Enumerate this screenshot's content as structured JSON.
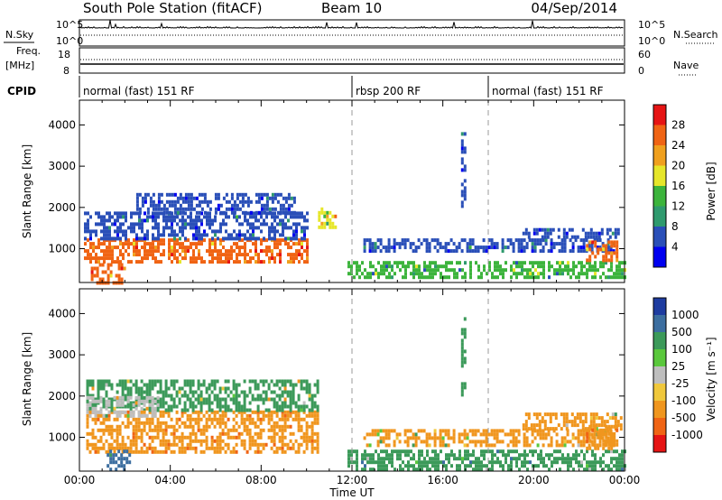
{
  "header": {
    "station": "South Pole Station (fitACF)",
    "beam": "Beam 10",
    "date": "04/Sep/2014"
  },
  "top_panels": {
    "nsky_label": "N.Sky",
    "nsky_ticks": [
      "10^5",
      "10^0"
    ],
    "nsearch_label": "N.Search",
    "freq_label_line1": "Freq.",
    "freq_label_line2": "[MHz]",
    "freq_ticks": [
      "18",
      "8"
    ],
    "nave_label": "Nave",
    "nave_ticks": [
      "60",
      "0"
    ],
    "cpid_label": "CPID",
    "cpid_segments": [
      {
        "label": "normal (fast) 151 RF",
        "start_hr": 0,
        "end_hr": 12
      },
      {
        "label": "rbsp 200 RF",
        "start_hr": 12,
        "end_hr": 18
      },
      {
        "label": "normal (fast) 151 RF",
        "start_hr": 18,
        "end_hr": 24
      }
    ]
  },
  "chart_data": [
    {
      "type": "heatmap",
      "name": "power",
      "ylabel": "Slant Range [km]",
      "colorbar_label": "Power [dB]",
      "colorbar_ticks": [
        "28",
        "24",
        "20",
        "16",
        "12",
        "8",
        "4"
      ],
      "colorbar_range": [
        0,
        32
      ],
      "colors": [
        "#0000f0",
        "#2a4fb8",
        "#2f9a6e",
        "#3cb43c",
        "#e6e62a",
        "#f0a01e",
        "#f06414",
        "#e61414"
      ],
      "x_range": [
        0,
        24
      ],
      "y_range": [
        180,
        4600
      ],
      "y_ticks": [
        1000,
        2000,
        3000,
        4000
      ],
      "x_ticks": [
        "00:00",
        "04:00",
        "08:00",
        "12:00",
        "16:00",
        "20:00",
        "00:00"
      ],
      "regions": [
        {
          "t0": 0.2,
          "t1": 10.0,
          "r0": 650,
          "r1": 1250,
          "value": 26
        },
        {
          "t0": 0.2,
          "t1": 10.0,
          "r0": 1250,
          "r1": 1900,
          "value": 6
        },
        {
          "t0": 2.5,
          "t1": 9.5,
          "r0": 1900,
          "r1": 2350,
          "value": 5
        },
        {
          "t0": 0.5,
          "t1": 2.0,
          "r0": 200,
          "r1": 650,
          "value": 25
        },
        {
          "t0": 10.5,
          "t1": 11.3,
          "r0": 1500,
          "r1": 2000,
          "value": 18
        },
        {
          "t0": 11.8,
          "t1": 24.0,
          "r0": 300,
          "r1": 700,
          "value": 14
        },
        {
          "t0": 12.5,
          "t1": 23.5,
          "r0": 900,
          "r1": 1250,
          "value": 6
        },
        {
          "t0": 19.5,
          "t1": 23.9,
          "r0": 1250,
          "r1": 1500,
          "value": 6
        },
        {
          "t0": 22.3,
          "t1": 23.7,
          "r0": 700,
          "r1": 1200,
          "value": 24
        },
        {
          "t0": 16.8,
          "t1": 17.0,
          "r0": 2000,
          "r1": 4000,
          "value": 7
        }
      ]
    },
    {
      "type": "heatmap",
      "name": "velocity",
      "ylabel": "Slant Range [km]",
      "xlabel": "Time UT",
      "colorbar_label": "Velocity [m s⁻¹]",
      "colorbar_ticks": [
        "1000",
        "500",
        "100",
        "25",
        "-25",
        "-100",
        "-500",
        "-1000"
      ],
      "colors": [
        "#1e3ca0",
        "#3c6ea0",
        "#3c9a5a",
        "#5ac83c",
        "#bebebe",
        "#f0c83c",
        "#f0961e",
        "#f06414",
        "#e61414"
      ],
      "x_range": [
        0,
        24
      ],
      "y_range": [
        180,
        4600
      ],
      "y_ticks": [
        1000,
        2000,
        3000,
        4000
      ],
      "x_ticks": [
        "00:00",
        "04:00",
        "08:00",
        "12:00",
        "16:00",
        "20:00",
        "00:00"
      ],
      "regions": [
        {
          "t0": 0.3,
          "t1": 10.5,
          "r0": 650,
          "r1": 1650,
          "value": -450
        },
        {
          "t0": 0.3,
          "t1": 10.5,
          "r0": 1650,
          "r1": 2400,
          "value": 150
        },
        {
          "t0": 0.3,
          "t1": 3.5,
          "r0": 1550,
          "r1": 2000,
          "value": 0
        },
        {
          "t0": 1.2,
          "t1": 2.2,
          "r0": 200,
          "r1": 700,
          "value": 700
        },
        {
          "t0": 11.8,
          "t1": 24.0,
          "r0": 200,
          "r1": 700,
          "value": 300
        },
        {
          "t0": 12.5,
          "t1": 23.5,
          "r0": 800,
          "r1": 1200,
          "value": -120
        },
        {
          "t0": 19.5,
          "t1": 23.9,
          "r0": 1200,
          "r1": 1600,
          "value": -150
        },
        {
          "t0": 22.3,
          "t1": 23.7,
          "r0": 700,
          "r1": 1300,
          "value": -450
        },
        {
          "t0": 16.8,
          "t1": 17.0,
          "r0": 2000,
          "r1": 4000,
          "value": 400
        }
      ]
    }
  ]
}
